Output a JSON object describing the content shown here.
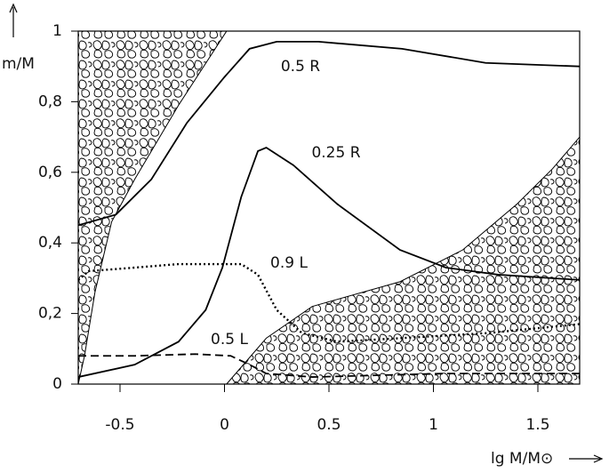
{
  "chart_data": {
    "type": "line",
    "xlabel": "lg M/M⊙",
    "ylabel": "m/M",
    "xlim": [
      -0.7,
      1.7
    ],
    "ylim": [
      0,
      1
    ],
    "xticks": [
      -0.5,
      0,
      0.5,
      1,
      1.5
    ],
    "yticks": [
      {
        "value": 0,
        "label": "0"
      },
      {
        "value": 0.2,
        "label": "0,2"
      },
      {
        "value": 0.4,
        "label": "0,4"
      },
      {
        "value": 0.6,
        "label": "0,6"
      },
      {
        "value": 0.8,
        "label": "0,8"
      },
      {
        "value": 1,
        "label": "1"
      }
    ],
    "convective_zones": [
      {
        "x": [
          -0.7,
          0.01,
          -0.22,
          -0.43,
          -0.54,
          -0.62,
          -0.67,
          -0.7
        ],
        "y": [
          1,
          1,
          0.79,
          0.58,
          0.46,
          0.26,
          0.08,
          0
        ]
      },
      {
        "x": [
          0.01,
          0.2,
          0.42,
          0.84,
          1.14,
          1.4,
          1.57,
          1.7,
          1.7
        ],
        "y": [
          0,
          0.13,
          0.22,
          0.29,
          0.38,
          0.51,
          0.61,
          0.7,
          0
        ]
      }
    ],
    "series": [
      {
        "name": "0.5 R",
        "color": "#000000",
        "dash": "solid",
        "x": [
          -0.7,
          -0.52,
          -0.35,
          -0.18,
          0,
          0.12,
          0.25,
          0.45,
          0.85,
          1.25,
          1.7
        ],
        "values": [
          0.45,
          0.48,
          0.58,
          0.74,
          0.87,
          0.95,
          0.97,
          0.97,
          0.95,
          0.91,
          0.9
        ]
      },
      {
        "name": "0.25 R",
        "color": "#000000",
        "dash": "solid",
        "x": [
          -0.7,
          -0.43,
          -0.22,
          -0.09,
          -0.01,
          0.08,
          0.16,
          0.2,
          0.33,
          0.54,
          0.84,
          1.06,
          1.31,
          1.7
        ],
        "values": [
          0.02,
          0.055,
          0.12,
          0.21,
          0.33,
          0.53,
          0.66,
          0.67,
          0.62,
          0.51,
          0.38,
          0.33,
          0.31,
          0.295
        ]
      },
      {
        "name": "0.9 L",
        "color": "#000000",
        "dash": "dotted",
        "x": [
          -0.7,
          -0.65,
          -0.43,
          -0.22,
          0.08,
          0.16,
          0.25,
          0.37,
          0.54,
          0.84,
          1.27,
          1.7
        ],
        "values": [
          0.295,
          0.32,
          0.33,
          0.34,
          0.34,
          0.31,
          0.21,
          0.145,
          0.12,
          0.13,
          0.145,
          0.17
        ]
      },
      {
        "name": "0.5 L",
        "color": "#000000",
        "dash": "dashed",
        "x": [
          -0.7,
          -0.43,
          -0.14,
          0.03,
          0.12,
          0.2,
          0.42,
          1.06,
          1.7
        ],
        "values": [
          0.08,
          0.08,
          0.085,
          0.08,
          0.055,
          0.03,
          0.02,
          0.03,
          0.03
        ]
      }
    ]
  }
}
